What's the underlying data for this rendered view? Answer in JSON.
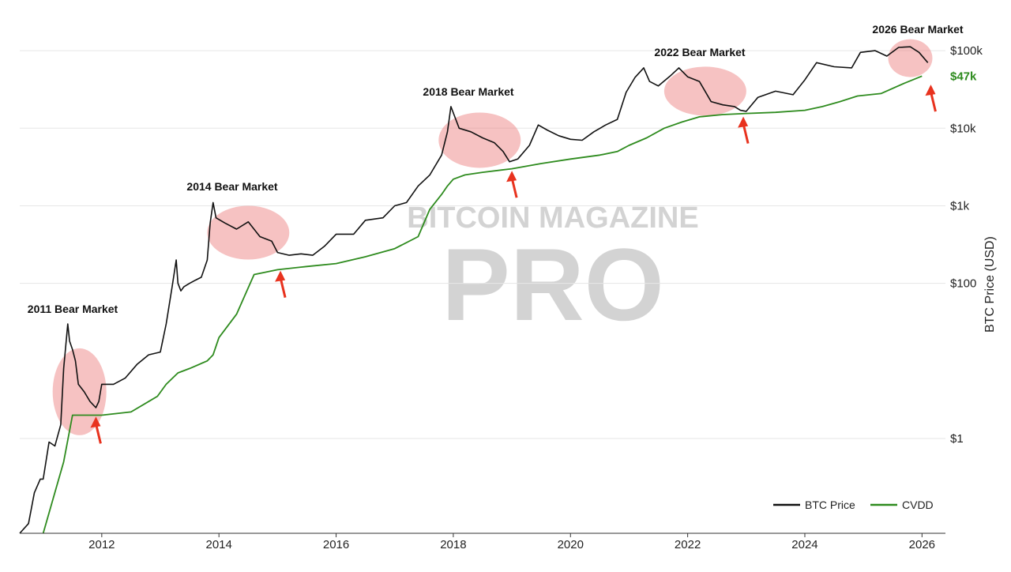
{
  "chart_data": {
    "type": "line",
    "y_scale": "log",
    "ylabel": "BTC Price (USD)",
    "xlabel": "",
    "xlim": [
      2010.6,
      2026.4
    ],
    "ylim": [
      0.06,
      250000
    ],
    "x_ticks": [
      2012,
      2014,
      2016,
      2018,
      2020,
      2022,
      2024,
      2026
    ],
    "y_ticks": [
      {
        "value": 1,
        "label": "$1"
      },
      {
        "value": 100,
        "label": "$100"
      },
      {
        "value": 1000,
        "label": "$1k"
      },
      {
        "value": 10000,
        "label": "$10k"
      },
      {
        "value": 100000,
        "label": "$100k"
      }
    ],
    "grid": true,
    "legend": "bottom-right",
    "series": [
      {
        "name": "BTC Price",
        "color": "#111111",
        "x": [
          2010.6,
          2010.75,
          2010.85,
          2010.95,
          2011.0,
          2011.1,
          2011.2,
          2011.3,
          2011.35,
          2011.42,
          2011.45,
          2011.5,
          2011.55,
          2011.6,
          2011.7,
          2011.8,
          2011.9,
          2011.95,
          2012.0,
          2012.2,
          2012.4,
          2012.6,
          2012.8,
          2013.0,
          2013.1,
          2013.2,
          2013.27,
          2013.3,
          2013.35,
          2013.4,
          2013.5,
          2013.6,
          2013.7,
          2013.8,
          2013.85,
          2013.9,
          2013.95,
          2014.1,
          2014.3,
          2014.5,
          2014.7,
          2014.9,
          2015.0,
          2015.2,
          2015.4,
          2015.6,
          2015.8,
          2016.0,
          2016.3,
          2016.5,
          2016.8,
          2017.0,
          2017.2,
          2017.4,
          2017.6,
          2017.8,
          2017.9,
          2017.96,
          2018.1,
          2018.3,
          2018.5,
          2018.7,
          2018.85,
          2018.96,
          2019.1,
          2019.3,
          2019.45,
          2019.6,
          2019.8,
          2020.0,
          2020.2,
          2020.4,
          2020.6,
          2020.8,
          2020.95,
          2021.1,
          2021.25,
          2021.35,
          2021.5,
          2021.7,
          2021.85,
          2022.0,
          2022.2,
          2022.4,
          2022.6,
          2022.8,
          2022.9,
          2023.0,
          2023.2,
          2023.5,
          2023.8,
          2024.0,
          2024.2,
          2024.5,
          2024.8,
          2024.95,
          2025.2,
          2025.4,
          2025.6,
          2025.8,
          2025.95,
          2026.1
        ],
        "values": [
          0.06,
          0.08,
          0.2,
          0.3,
          0.3,
          0.9,
          0.8,
          1.5,
          8,
          30,
          18,
          14,
          10,
          5,
          4,
          3,
          2.5,
          3,
          5,
          5,
          6,
          9,
          12,
          13,
          30,
          90,
          200,
          100,
          80,
          90,
          100,
          110,
          120,
          200,
          600,
          1100,
          700,
          600,
          500,
          620,
          400,
          350,
          250,
          230,
          240,
          230,
          300,
          430,
          430,
          650,
          700,
          1000,
          1100,
          1800,
          2500,
          4500,
          9000,
          19000,
          10000,
          9000,
          7500,
          6500,
          5000,
          3700,
          4000,
          6000,
          11000,
          9500,
          8000,
          7200,
          7000,
          9000,
          11000,
          13000,
          29000,
          45000,
          60000,
          40000,
          35000,
          47000,
          60000,
          46000,
          40000,
          22000,
          20000,
          19000,
          17000,
          16500,
          25000,
          30000,
          27000,
          42000,
          70000,
          62000,
          60000,
          95000,
          100000,
          85000,
          110000,
          112000,
          95000,
          70000
        ]
      },
      {
        "name": "CVDD",
        "color": "#2e8b1e",
        "x": [
          2011.0,
          2011.35,
          2011.5,
          2011.6,
          2011.8,
          2012.0,
          2012.5,
          2012.8,
          2012.95,
          2013.1,
          2013.3,
          2013.5,
          2013.8,
          2013.9,
          2014.0,
          2014.3,
          2014.6,
          2015.0,
          2015.5,
          2016.0,
          2016.5,
          2017.0,
          2017.4,
          2017.6,
          2017.8,
          2017.9,
          2018.0,
          2018.2,
          2018.5,
          2019.0,
          2019.5,
          2020.0,
          2020.5,
          2020.8,
          2021.0,
          2021.3,
          2021.6,
          2021.9,
          2022.2,
          2022.6,
          2023.0,
          2023.5,
          2024.0,
          2024.3,
          2024.6,
          2024.9,
          2025.3,
          2025.7,
          2026.0
        ],
        "values": [
          0.06,
          0.5,
          2,
          2,
          2,
          2,
          2.2,
          3,
          3.5,
          5,
          7,
          8,
          10,
          12,
          20,
          40,
          130,
          150,
          165,
          180,
          220,
          280,
          400,
          900,
          1400,
          1800,
          2200,
          2500,
          2700,
          3000,
          3500,
          4000,
          4500,
          5000,
          6000,
          7500,
          10000,
          12000,
          14000,
          15000,
          15500,
          16000,
          17000,
          19000,
          22000,
          26000,
          28000,
          38000,
          47000
        ]
      }
    ],
    "annotations": [
      {
        "label": "2011 Bear Market",
        "x": 2011.7,
        "y": 10
      },
      {
        "label": "2014 Bear Market",
        "x": 2014.6,
        "y": 450
      },
      {
        "label": "2018 Bear Market",
        "x": 2018.45,
        "y": 7000
      },
      {
        "label": "2022 Bear Market",
        "x": 2022.2,
        "y": 30000
      },
      {
        "label": "2026 Bear Market",
        "x": 2025.75,
        "y": 90000
      }
    ],
    "value_labels": [
      {
        "label": "$47k",
        "color": "#2e8b1e",
        "value": 47000
      }
    ],
    "watermark": {
      "line1": "BITCOIN MAGAZINE",
      "line2": "PRO"
    }
  }
}
